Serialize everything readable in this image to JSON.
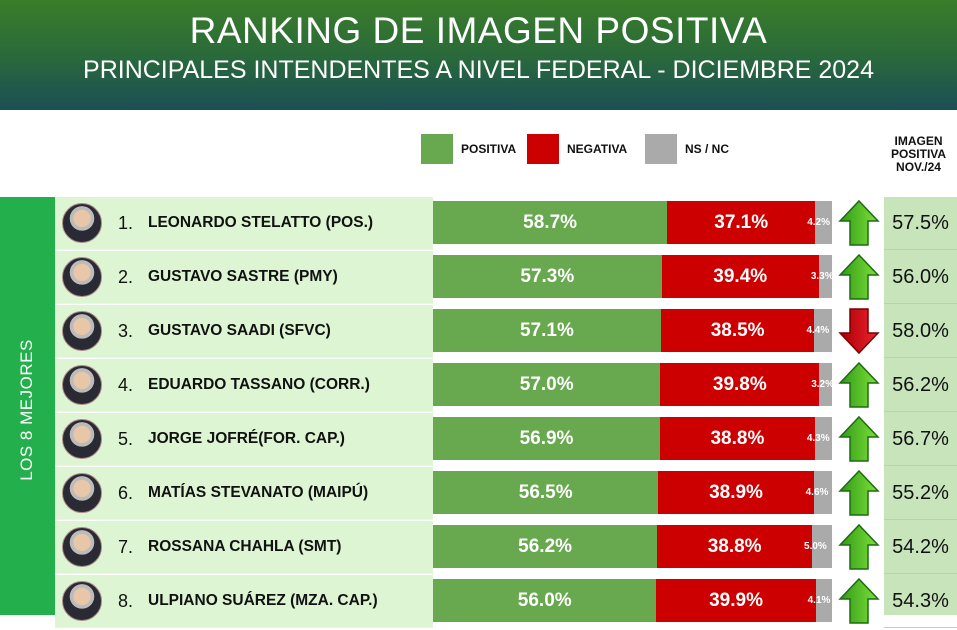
{
  "header": {
    "title": "RANKING DE IMAGEN POSITIVA",
    "subtitle": "PRINCIPALES INTENDENTES A NIVEL FEDERAL - DICIEMBRE 2024"
  },
  "legend": [
    {
      "label": "POSITIVA",
      "color": "#68a84f"
    },
    {
      "label": "NEGATIVA",
      "color": "#cc0000"
    },
    {
      "label": "NS / NC",
      "color": "#aaaaaa"
    }
  ],
  "previous_header": "IMAGEN POSITIVA NOV./24",
  "group_label": "LOS 8 MEJORES",
  "chart_data": {
    "type": "bar",
    "stacked": true,
    "orientation": "horizontal",
    "categories": [
      "LEONARDO STELATTO (POS.)",
      "GUSTAVO SASTRE (PMY)",
      "GUSTAVO SAADI (SFVC)",
      "EDUARDO TASSANO (CORR.)",
      "JORGE JOFRÉ(FOR. CAP.)",
      "MATÍAS STEVANATO (MAIPÚ)",
      "ROSSANA CHAHLA (SMT)",
      "ULPIANO SUÁREZ (MZA. CAP.)"
    ],
    "ranks": [
      "1.",
      "2.",
      "3.",
      "4.",
      "5.",
      "6.",
      "7.",
      "8."
    ],
    "series": [
      {
        "name": "POSITIVA",
        "values": [
          58.7,
          57.3,
          57.1,
          57.0,
          56.9,
          56.5,
          56.2,
          56.0
        ]
      },
      {
        "name": "NEGATIVA",
        "values": [
          37.1,
          39.4,
          38.5,
          39.8,
          38.8,
          38.9,
          38.8,
          39.9
        ]
      },
      {
        "name": "NS / NC",
        "values": [
          4.2,
          3.3,
          4.4,
          3.2,
          4.3,
          4.6,
          5.0,
          4.1
        ]
      }
    ],
    "previous_positive": {
      "name": "IMAGEN POSITIVA NOV./24",
      "values": [
        57.5,
        56.0,
        58.0,
        56.2,
        56.7,
        55.2,
        54.2,
        54.3
      ]
    },
    "trend": [
      "up",
      "up",
      "down",
      "up",
      "up",
      "up",
      "up",
      "up"
    ]
  }
}
